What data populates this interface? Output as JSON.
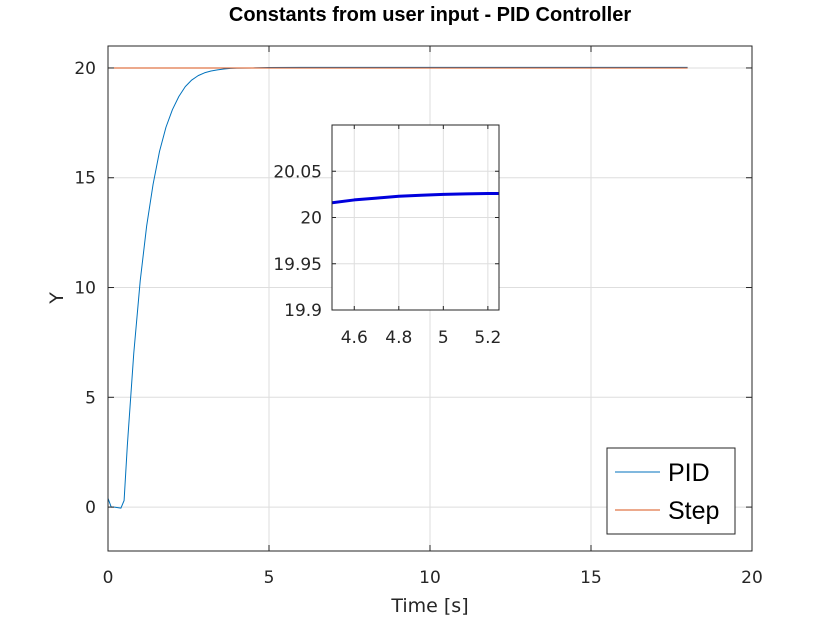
{
  "chart_data": [
    {
      "type": "line",
      "title": "Constants from user input - PID Controller",
      "xlabel": "Time [s]",
      "ylabel": "Y",
      "xlim": [
        0,
        20
      ],
      "ylim": [
        -2,
        21
      ],
      "xticks": [
        0,
        5,
        10,
        15,
        20
      ],
      "yticks": [
        0,
        5,
        10,
        15,
        20
      ],
      "xtick_labels": [
        "0",
        "5",
        "10",
        "15",
        "20"
      ],
      "ytick_labels": [
        "0",
        "5",
        "10",
        "15",
        "20"
      ],
      "grid": true,
      "legend": "bottom-right",
      "series": [
        {
          "name": "PID",
          "color": "#0072bd",
          "x": [
            0,
            0.1,
            0.2,
            0.4,
            0.5,
            0.6,
            0.8,
            1.0,
            1.2,
            1.4,
            1.6,
            1.8,
            2.0,
            2.2,
            2.4,
            2.6,
            2.8,
            3.0,
            3.2,
            3.4,
            3.6,
            3.8,
            4.0,
            4.5,
            5.0,
            6.0,
            8.0,
            10.0,
            12.0,
            14.0,
            16.0,
            18.0
          ],
          "y": [
            0.4,
            0.0,
            0.0,
            -0.05,
            0.3,
            2.8,
            7.0,
            10.3,
            12.8,
            14.7,
            16.2,
            17.3,
            18.1,
            18.7,
            19.15,
            19.45,
            19.65,
            19.78,
            19.86,
            19.91,
            19.95,
            19.98,
            19.99,
            20.0,
            20.02,
            20.025,
            20.025,
            20.025,
            20.025,
            20.025,
            20.025,
            20.025
          ]
        },
        {
          "name": "Step",
          "color": "#d95319",
          "x": [
            0,
            18
          ],
          "y": [
            20,
            20
          ]
        }
      ]
    },
    {
      "type": "line",
      "xlim": [
        4.5,
        5.25
      ],
      "ylim": [
        19.9,
        20.1
      ],
      "xticks": [
        4.6,
        4.8,
        5.0,
        5.2
      ],
      "yticks": [
        19.9,
        19.95,
        20.0,
        20.05
      ],
      "xtick_labels": [
        "4.6",
        "4.8",
        "5",
        "5.2"
      ],
      "ytick_labels": [
        "19.9",
        "19.95",
        "20",
        "20.05"
      ],
      "grid": true,
      "series": [
        {
          "color": "#0000dd",
          "x": [
            4.5,
            4.6,
            4.7,
            4.8,
            4.9,
            5.0,
            5.1,
            5.2,
            5.25
          ],
          "y": [
            20.016,
            20.019,
            20.021,
            20.023,
            20.024,
            20.025,
            20.0255,
            20.026,
            20.026
          ]
        }
      ]
    }
  ]
}
